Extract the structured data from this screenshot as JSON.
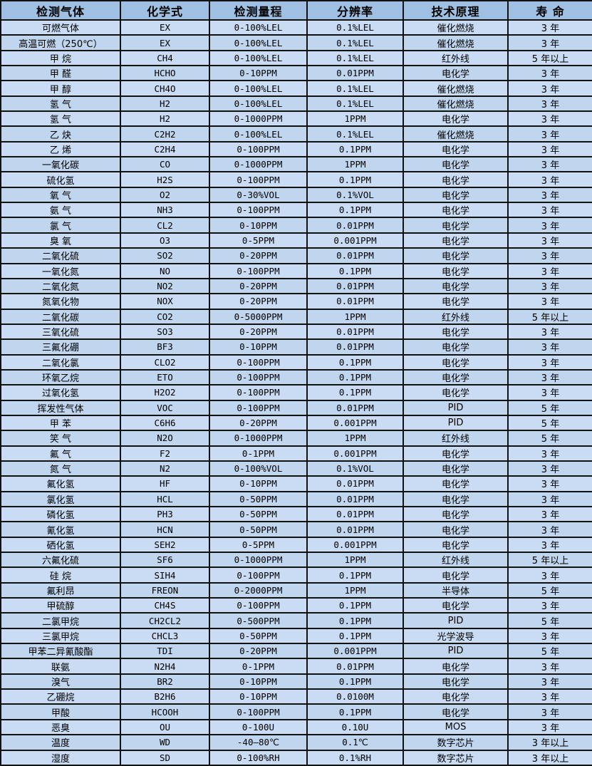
{
  "colors": {
    "header_bg": "#9fc0e2",
    "row_odd": "#c9dcf3",
    "row_even": "#c0d5ee",
    "border": "#111111",
    "text": "#000000"
  },
  "table": {
    "headers": [
      "检测气体",
      "化学式",
      "检测量程",
      "分辨率",
      "技术原理",
      "寿 命"
    ],
    "columns": [
      "gas",
      "formula",
      "range",
      "resolution",
      "principle",
      "lifespan"
    ],
    "rows": [
      [
        "可燃气体",
        "EX",
        "0-100%LEL",
        "0.1%LEL",
        "催化燃烧",
        "3 年"
      ],
      [
        "高温可燃（250℃）",
        "EX",
        "0-100%LEL",
        "0.1%LEL",
        "催化燃烧",
        "3 年"
      ],
      [
        "甲 烷",
        "CH4",
        "0-100%LEL",
        "0.1%LEL",
        "红外线",
        "5 年以上"
      ],
      [
        "甲 醛",
        "HCHO",
        "0-10PPM",
        "0.01PPM",
        "电化学",
        "3 年"
      ],
      [
        "甲 醇",
        "CH4O",
        "0-100%LEL",
        "0.1%LEL",
        "催化燃烧",
        "3 年"
      ],
      [
        "氢 气",
        "H2",
        "0-100%LEL",
        "0.1%LEL",
        "催化燃烧",
        "3 年"
      ],
      [
        "氢 气",
        "H2",
        "0-1000PPM",
        "1PPM",
        "电化学",
        "3 年"
      ],
      [
        "乙 炔",
        "C2H2",
        "0-100%LEL",
        "0.1%LEL",
        "催化燃烧",
        "3 年"
      ],
      [
        "乙 烯",
        "C2H4",
        "0-100PPM",
        "0.1PPM",
        "电化学",
        "3 年"
      ],
      [
        "一氧化碳",
        "CO",
        "0-1000PPM",
        "1PPM",
        "电化学",
        "3 年"
      ],
      [
        "硫化氢",
        "H2S",
        "0-100PPM",
        "0.1PPM",
        "电化学",
        "3 年"
      ],
      [
        "氧 气",
        "O2",
        "0-30%VOL",
        "0.1%VOL",
        "电化学",
        "3 年"
      ],
      [
        "氨 气",
        "NH3",
        "0-100PPM",
        "0.1PPM",
        "电化学",
        "3 年"
      ],
      [
        "氯 气",
        "CL2",
        "0-10PPM",
        "0.01PPM",
        "电化学",
        "3 年"
      ],
      [
        "臭 氧",
        "O3",
        "0-5PPM",
        "0.001PPM",
        "电化学",
        "3 年"
      ],
      [
        "二氧化硫",
        "SO2",
        "0-20PPM",
        "0.01PPM",
        "电化学",
        "3 年"
      ],
      [
        "一氧化氮",
        "NO",
        "0-100PPM",
        "0.1PPM",
        "电化学",
        "3 年"
      ],
      [
        "二氧化氮",
        "NO2",
        "0-20PPM",
        "0.01PPM",
        "电化学",
        "3 年"
      ],
      [
        "氮氧化物",
        "NOX",
        "0-20PPM",
        "0.01PPM",
        "电化学",
        "3 年"
      ],
      [
        "二氧化碳",
        "CO2",
        "0-5000PPM",
        "1PPM",
        "红外线",
        "5 年以上"
      ],
      [
        "三氧化硫",
        "SO3",
        "0-20PPM",
        "0.01PPM",
        "电化学",
        "3 年"
      ],
      [
        "三氟化硼",
        "BF3",
        "0-10PPM",
        "0.01PPM",
        "电化学",
        "3 年"
      ],
      [
        "二氧化氯",
        "CLO2",
        "0-100PPM",
        "0.1PPM",
        "电化学",
        "3 年"
      ],
      [
        "环氧乙烷",
        "ETO",
        "0-100PPM",
        "0.1PPM",
        "电化学",
        "3 年"
      ],
      [
        "过氧化氢",
        "H2O2",
        "0-100PPM",
        "0.1PPM",
        "电化学",
        "3 年"
      ],
      [
        "挥发性气体",
        "VOC",
        "0-100PPM",
        "0.01PPM",
        "PID",
        "5 年"
      ],
      [
        "甲 苯",
        "C6H6",
        "0-20PPM",
        "0.001PPM",
        "PID",
        "5 年"
      ],
      [
        "笑 气",
        "N2O",
        "0-1000PPM",
        "1PPM",
        "红外线",
        "5 年"
      ],
      [
        "氟 气",
        "F2",
        "0-1PPM",
        "0.001PPM",
        "电化学",
        "3 年"
      ],
      [
        "氮 气",
        "N2",
        "0-100%VOL",
        "0.1%VOL",
        "电化学",
        "3 年"
      ],
      [
        "氟化氢",
        "HF",
        "0-10PPM",
        "0.01PPM",
        "电化学",
        "3 年"
      ],
      [
        "氯化氢",
        "HCL",
        "0-50PPM",
        "0.01PPM",
        "电化学",
        "3 年"
      ],
      [
        "磷化氢",
        "PH3",
        "0-50PPM",
        "0.01PPM",
        "电化学",
        "3 年"
      ],
      [
        "氰化氢",
        "HCN",
        "0-50PPM",
        "0.01PPM",
        "电化学",
        "3 年"
      ],
      [
        "硒化氢",
        "SEH2",
        "0-5PPM",
        "0.001PPM",
        "电化学",
        "3 年"
      ],
      [
        "六氟化硫",
        "SF6",
        "0-1000PPM",
        "1PPM",
        "红外线",
        "5 年以上"
      ],
      [
        "硅 烷",
        "SIH4",
        "0-100PPM",
        "0.1PPM",
        "电化学",
        "3 年"
      ],
      [
        "氟利昂",
        "FREON",
        "0-2000PPM",
        "1PPM",
        "半导体",
        "5 年"
      ],
      [
        "甲硫醇",
        "CH4S",
        "0-100PPM",
        "0.1PPM",
        "电化学",
        "3 年"
      ],
      [
        "二氯甲烷",
        "CH2CL2",
        "0-500PPM",
        "0.1PPM",
        "PID",
        "5 年"
      ],
      [
        "三氯甲烷",
        "CHCL3",
        "0-50PPM",
        "0.1PPM",
        "光学波导",
        "3 年"
      ],
      [
        "甲苯二异氰酸酯",
        "TDI",
        "0-20PPM",
        "0.001PPM",
        "PID",
        "5 年"
      ],
      [
        "联氨",
        "N2H4",
        "0-1PPM",
        "0.01PPM",
        "电化学",
        "3 年"
      ],
      [
        "溴气",
        "BR2",
        "0-10PPM",
        "0.1PPM",
        "电化学",
        "3 年"
      ],
      [
        "乙硼烷",
        "B2H6",
        "0-10PPM",
        "0.0100M",
        "电化学",
        "3 年"
      ],
      [
        "甲酸",
        "HCOOH",
        "0-100PPM",
        "0.1PPM",
        "电化学",
        "3 年"
      ],
      [
        "恶臭",
        "OU",
        "0-100U",
        "0.10U",
        "MOS",
        "3 年"
      ],
      [
        "温度",
        "WD",
        "-40—80℃",
        "0.1℃",
        "数字芯片",
        "3 年以上"
      ],
      [
        "湿度",
        "SD",
        "0-100%RH",
        "0.1%RH",
        "数字芯片",
        "3 年以上"
      ]
    ]
  }
}
